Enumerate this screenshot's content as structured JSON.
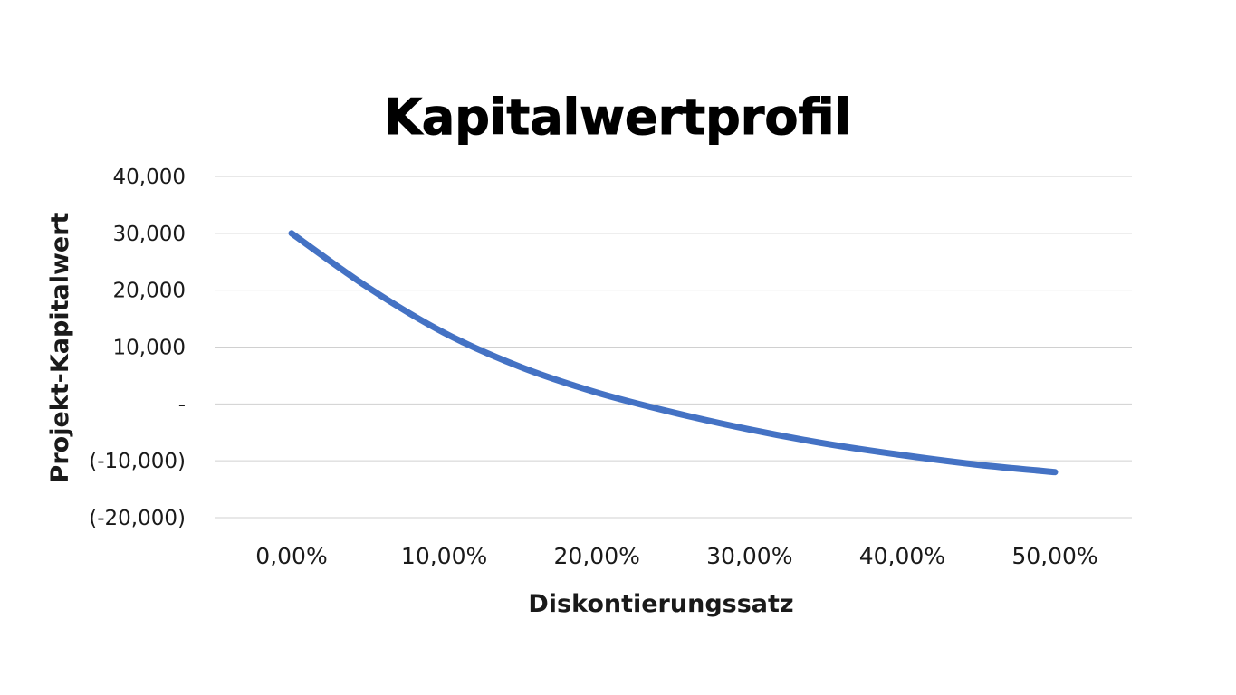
{
  "chart_data": {
    "type": "line",
    "title": "Kapitalwertprofil",
    "xlabel": "Diskontierungssatz",
    "ylabel": "Projekt-Kapitalwert",
    "xlim": [
      0,
      50
    ],
    "ylim": [
      -20000,
      40000
    ],
    "x_tick_labels": [
      "0,00%",
      "10,00%",
      "20,00%",
      "30,00%",
      "40,00%",
      "50,00%"
    ],
    "x_tick_values": [
      0,
      10,
      20,
      30,
      40,
      50
    ],
    "y_tick_labels": [
      "40,000",
      "30,000",
      "20,000",
      "10,000",
      "-",
      "(-10,000)",
      "(-20,000)"
    ],
    "y_tick_values": [
      40000,
      30000,
      20000,
      10000,
      0,
      -10000,
      -20000
    ],
    "grid": true,
    "legend": "none",
    "series": [
      {
        "color": "#4472C4",
        "x": [
          0,
          5,
          10,
          15,
          20,
          25,
          30,
          35,
          40,
          45,
          50
        ],
        "y": [
          30000,
          20500,
          12500,
          6500,
          2000,
          -1500,
          -4500,
          -7000,
          -9000,
          -10700,
          -12000
        ]
      }
    ]
  }
}
